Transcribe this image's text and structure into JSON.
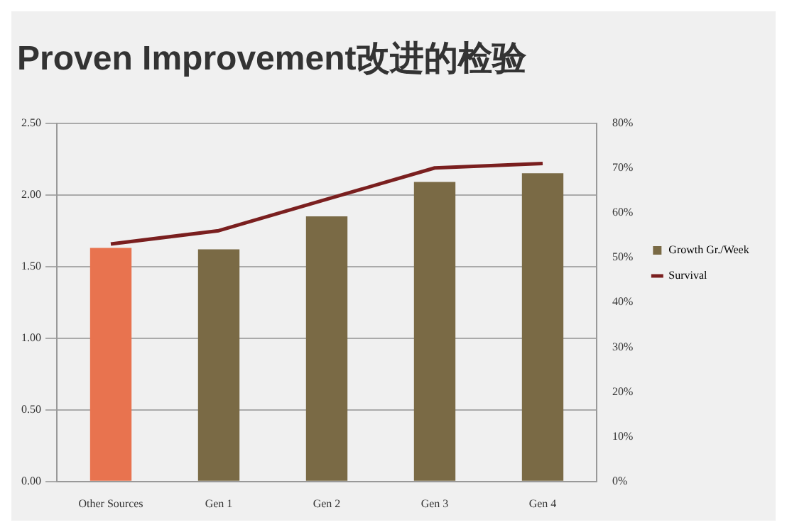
{
  "chart_data": {
    "type": "bar",
    "title": "Proven Improvement改进的检验",
    "categories": [
      "Other Sources",
      "Gen 1",
      "Gen 2",
      "Gen 3",
      "Gen 4"
    ],
    "series": [
      {
        "name": "Growth Gr./Week",
        "color": "#7a6a45",
        "colors": [
          "#e8734f",
          "#7a6a45",
          "#7a6a45",
          "#7a6a45",
          "#7a6a45"
        ],
        "values": [
          1.63,
          1.62,
          1.85,
          2.09,
          2.15
        ]
      },
      {
        "name": "Survival",
        "type": "line",
        "axis": "y2",
        "color": "#7a1f1f",
        "values": [
          53,
          56,
          63,
          70,
          71
        ]
      }
    ],
    "ylim": [
      0,
      2.5
    ],
    "yticks": [
      {
        "value": 0,
        "label": "0.00"
      },
      {
        "value": 0.5,
        "label": "0.50"
      },
      {
        "value": 1,
        "label": "1.00"
      },
      {
        "value": 1.5,
        "label": "1.50"
      },
      {
        "value": 2,
        "label": "2.00"
      },
      {
        "value": 2.5,
        "label": "2.50"
      }
    ],
    "y2lim": [
      0,
      80
    ],
    "y2ticks": [
      {
        "value": 0,
        "label": "0%"
      },
      {
        "value": 10,
        "label": "10%"
      },
      {
        "value": 20,
        "label": "20%"
      },
      {
        "value": 30,
        "label": "30%"
      },
      {
        "value": 40,
        "label": "40%"
      },
      {
        "value": 50,
        "label": "50%"
      },
      {
        "value": 60,
        "label": "60%"
      },
      {
        "value": 70,
        "label": "70%"
      },
      {
        "value": 80,
        "label": "80%"
      }
    ],
    "grid": "y",
    "legend": "right",
    "marker": "none"
  }
}
